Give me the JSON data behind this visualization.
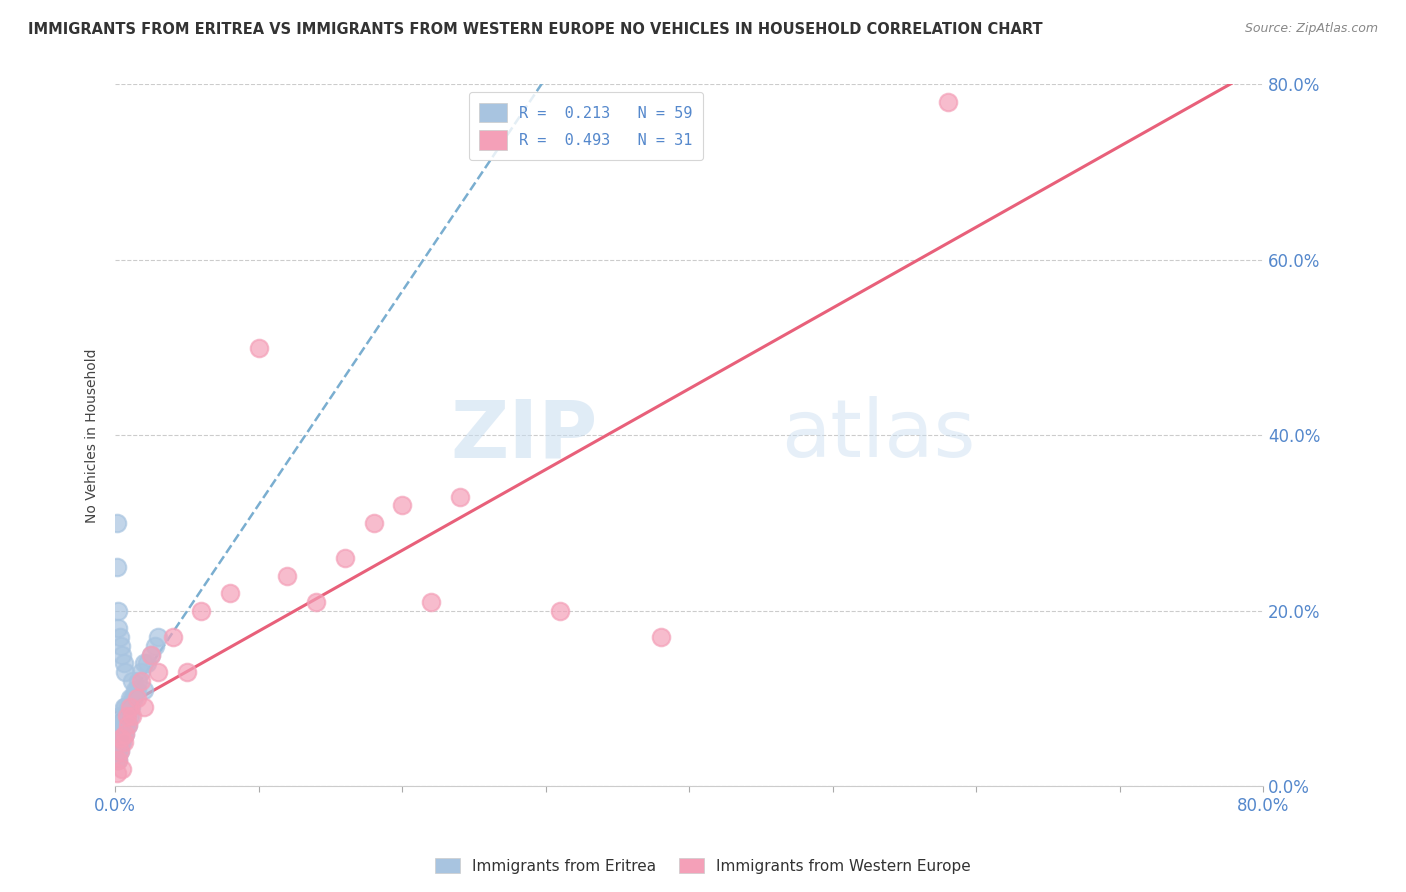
{
  "title": "IMMIGRANTS FROM ERITREA VS IMMIGRANTS FROM WESTERN EUROPE NO VEHICLES IN HOUSEHOLD CORRELATION CHART",
  "source": "Source: ZipAtlas.com",
  "ylabel": "No Vehicles in Household",
  "legend_entry1": "R =  0.213   N = 59",
  "legend_entry2": "R =  0.493   N = 31",
  "legend_label1": "Immigrants from Eritrea",
  "legend_label2": "Immigrants from Western Europe",
  "color_eritrea": "#a8c4e0",
  "color_western": "#f4a0b8",
  "trendline_eritrea_color": "#7aaed0",
  "trendline_western_color": "#e8607a",
  "watermark_zip": "ZIP",
  "watermark_atlas": "atlas",
  "xlim": [
    0.0,
    0.8
  ],
  "ylim": [
    0.0,
    0.8
  ],
  "scatter_eritrea_x": [
    0.001,
    0.001,
    0.001,
    0.001,
    0.001,
    0.001,
    0.001,
    0.001,
    0.002,
    0.002,
    0.002,
    0.002,
    0.002,
    0.003,
    0.003,
    0.003,
    0.003,
    0.004,
    0.004,
    0.004,
    0.004,
    0.005,
    0.005,
    0.005,
    0.006,
    0.006,
    0.006,
    0.007,
    0.007,
    0.007,
    0.008,
    0.008,
    0.009,
    0.009,
    0.01,
    0.01,
    0.011,
    0.012,
    0.013,
    0.014,
    0.015,
    0.016,
    0.018,
    0.02,
    0.022,
    0.025,
    0.028,
    0.03,
    0.001,
    0.001,
    0.002,
    0.002,
    0.003,
    0.004,
    0.005,
    0.006,
    0.007,
    0.012,
    0.02
  ],
  "scatter_eritrea_y": [
    0.03,
    0.035,
    0.04,
    0.045,
    0.05,
    0.055,
    0.06,
    0.07,
    0.03,
    0.04,
    0.05,
    0.06,
    0.07,
    0.04,
    0.05,
    0.06,
    0.08,
    0.05,
    0.06,
    0.07,
    0.08,
    0.05,
    0.06,
    0.07,
    0.06,
    0.07,
    0.09,
    0.06,
    0.07,
    0.09,
    0.07,
    0.08,
    0.07,
    0.09,
    0.08,
    0.1,
    0.09,
    0.1,
    0.1,
    0.11,
    0.11,
    0.12,
    0.13,
    0.14,
    0.14,
    0.15,
    0.16,
    0.17,
    0.3,
    0.25,
    0.2,
    0.18,
    0.17,
    0.16,
    0.15,
    0.14,
    0.13,
    0.12,
    0.11
  ],
  "scatter_western_x": [
    0.001,
    0.002,
    0.003,
    0.004,
    0.005,
    0.006,
    0.007,
    0.008,
    0.009,
    0.01,
    0.012,
    0.015,
    0.018,
    0.02,
    0.025,
    0.03,
    0.04,
    0.05,
    0.06,
    0.08,
    0.1,
    0.12,
    0.14,
    0.16,
    0.18,
    0.2,
    0.22,
    0.24,
    0.31,
    0.38,
    0.58
  ],
  "scatter_western_y": [
    0.015,
    0.03,
    0.04,
    0.055,
    0.02,
    0.05,
    0.06,
    0.08,
    0.07,
    0.09,
    0.08,
    0.1,
    0.12,
    0.09,
    0.15,
    0.13,
    0.17,
    0.13,
    0.2,
    0.22,
    0.5,
    0.24,
    0.21,
    0.26,
    0.3,
    0.32,
    0.21,
    0.33,
    0.2,
    0.17,
    0.78
  ]
}
